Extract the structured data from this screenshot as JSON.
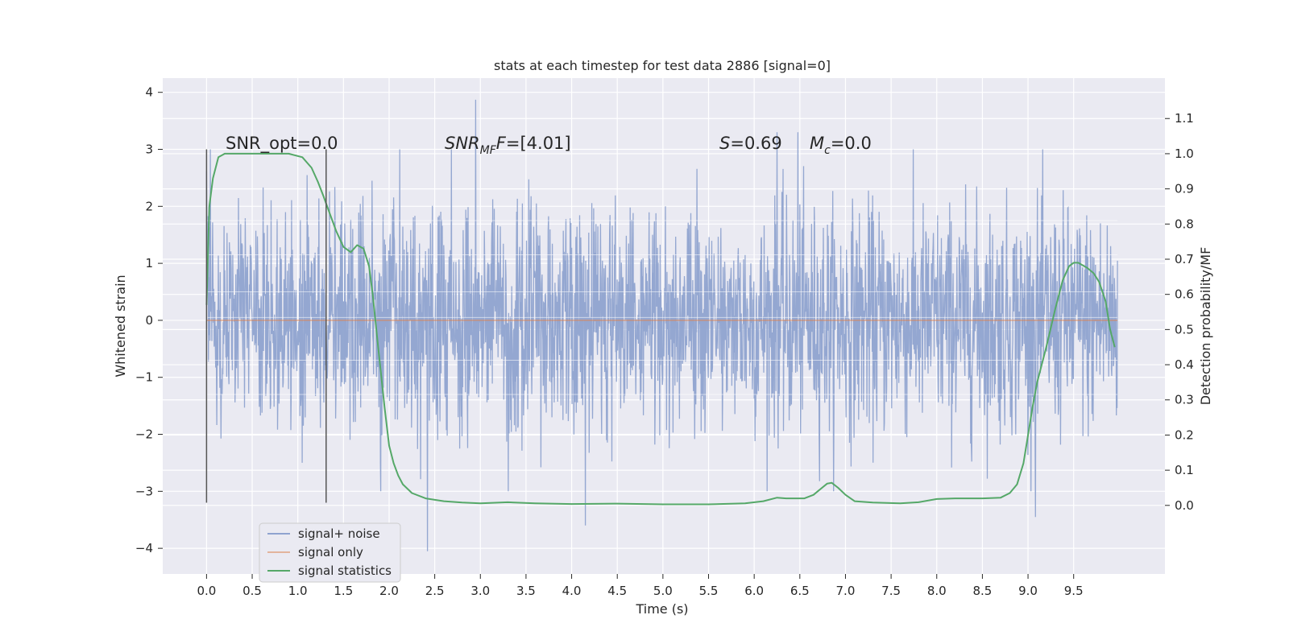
{
  "chart_data": {
    "type": "line",
    "title": "stats at each timestep for test data 2886 [signal=0]",
    "xlabel": "Time (s)",
    "ylabel": "Whitened strain",
    "ylabel_right": "Detection probability/MF",
    "xlim": [
      -0.48,
      10.5
    ],
    "ylim": [
      -4.45,
      4.25
    ],
    "ylim_right": [
      -0.195,
      1.215
    ],
    "x_ticks": [
      "0.0",
      "0.5",
      "1.0",
      "1.5",
      "2.0",
      "2.5",
      "3.0",
      "3.5",
      "4.0",
      "4.5",
      "5.0",
      "5.5",
      "6.0",
      "6.5",
      "7.0",
      "7.5",
      "8.0",
      "8.5",
      "9.0",
      "9.5"
    ],
    "y_ticks": [
      "−4",
      "−3",
      "−2",
      "−1",
      "0",
      "1",
      "2",
      "3",
      "4"
    ],
    "y_ticks_right": [
      "0.0",
      "0.1",
      "0.2",
      "0.3",
      "0.4",
      "0.5",
      "0.6",
      "0.7",
      "0.8",
      "0.9",
      "1.0",
      "1.1"
    ],
    "grid": true,
    "legend_placement": "lower-left",
    "annotations": {
      "snr_opt": "SNR_opt=0.0",
      "snr_mf_base": "SNR",
      "snr_mf_sub": "MF",
      "snr_mf_tail": "=[4.01]",
      "s_sym": "S",
      "s_val": "=0.69",
      "mc_base": "M",
      "mc_sub": "c",
      "mc_val": "=0.0"
    },
    "vlines_x": [
      0.0,
      1.31
    ],
    "vline_yrange": [
      -3.2,
      3.0
    ],
    "series": [
      {
        "name": "signal+ noise",
        "color": "#8fa3cf",
        "kind": "noise",
        "x_range": [
          0.0,
          9.98
        ],
        "typical_amplitude": 1.3,
        "peak_values": [
          [
            2.95,
            3.87
          ],
          [
            2.42,
            -4.05
          ],
          [
            4.15,
            -3.6
          ],
          [
            9.08,
            -3.45
          ],
          [
            6.48,
            3.3
          ],
          [
            6.25,
            3.3
          ]
        ]
      },
      {
        "name": "signal only",
        "color": "#dd8452",
        "kind": "line",
        "x": [
          0.0,
          9.98
        ],
        "y": [
          0.0,
          0.0
        ]
      },
      {
        "name": "signal statistics",
        "color": "#55a868",
        "axis": "right",
        "kind": "line",
        "x": [
          0.0,
          0.03,
          0.07,
          0.13,
          0.2,
          0.3,
          0.5,
          0.7,
          0.9,
          1.05,
          1.15,
          1.22,
          1.28,
          1.35,
          1.42,
          1.5,
          1.58,
          1.65,
          1.72,
          1.78,
          1.82,
          1.88,
          1.95,
          2.0,
          2.05,
          2.1,
          2.15,
          2.25,
          2.4,
          2.6,
          2.8,
          3.0,
          3.3,
          3.6,
          4.0,
          4.5,
          5.0,
          5.5,
          5.9,
          6.1,
          6.25,
          6.35,
          6.45,
          6.55,
          6.65,
          6.72,
          6.8,
          6.85,
          6.92,
          7.0,
          7.1,
          7.3,
          7.6,
          7.8,
          8.0,
          8.2,
          8.5,
          8.7,
          8.8,
          8.88,
          8.95,
          9.0,
          9.05,
          9.1,
          9.2,
          9.3,
          9.38,
          9.45,
          9.5,
          9.55,
          9.65,
          9.72,
          9.78,
          9.85,
          9.9,
          9.95
        ],
        "y": [
          0.57,
          0.85,
          0.93,
          0.99,
          1.0,
          1.0,
          1.0,
          1.0,
          1.0,
          0.99,
          0.96,
          0.92,
          0.88,
          0.83,
          0.78,
          0.735,
          0.72,
          0.74,
          0.73,
          0.68,
          0.6,
          0.45,
          0.28,
          0.17,
          0.12,
          0.085,
          0.06,
          0.035,
          0.02,
          0.012,
          0.008,
          0.006,
          0.009,
          0.006,
          0.004,
          0.005,
          0.003,
          0.003,
          0.006,
          0.012,
          0.022,
          0.02,
          0.02,
          0.02,
          0.03,
          0.045,
          0.062,
          0.064,
          0.05,
          0.03,
          0.012,
          0.008,
          0.006,
          0.009,
          0.018,
          0.02,
          0.02,
          0.022,
          0.035,
          0.06,
          0.12,
          0.2,
          0.28,
          0.35,
          0.45,
          0.56,
          0.64,
          0.68,
          0.69,
          0.69,
          0.675,
          0.66,
          0.635,
          0.58,
          0.5,
          0.45
        ]
      }
    ]
  }
}
